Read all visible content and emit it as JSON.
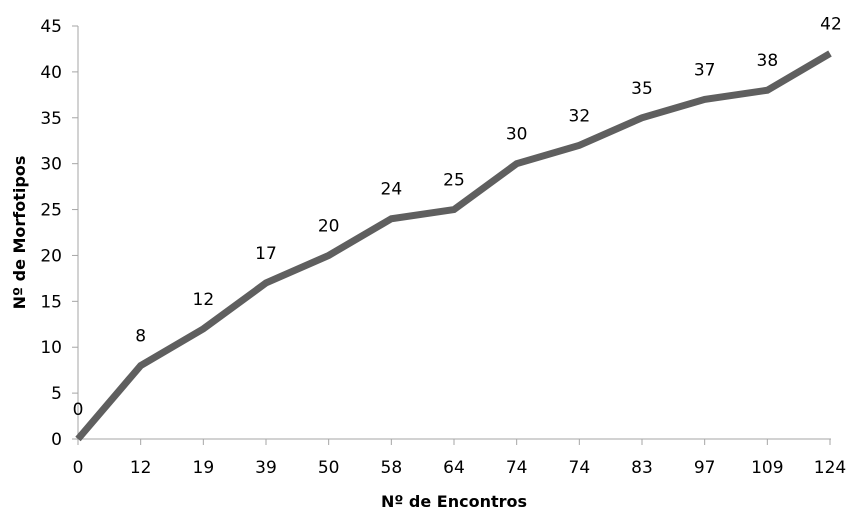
{
  "chart_data": {
    "type": "line",
    "title": "",
    "xlabel": "Nº de Encontros",
    "ylabel": "Nº de Morfotipos",
    "categories": [
      "0",
      "12",
      "19",
      "39",
      "50",
      "58",
      "64",
      "74",
      "74",
      "83",
      "97",
      "109",
      "124"
    ],
    "series": [
      {
        "values": [
          0,
          8,
          12,
          17,
          20,
          24,
          25,
          30,
          32,
          35,
          37,
          38,
          42
        ],
        "color": "#5f5f5f"
      }
    ],
    "data_labels": [
      "0",
      "8",
      "12",
      "17",
      "20",
      "24",
      "25",
      "30",
      "32",
      "35",
      "37",
      "38",
      "42"
    ],
    "ylim": [
      0,
      45
    ],
    "yticks": [
      0,
      5,
      10,
      15,
      20,
      25,
      30,
      35,
      40,
      45
    ],
    "grid": false,
    "legend": "none",
    "axis_color": "#a6a6a6"
  }
}
